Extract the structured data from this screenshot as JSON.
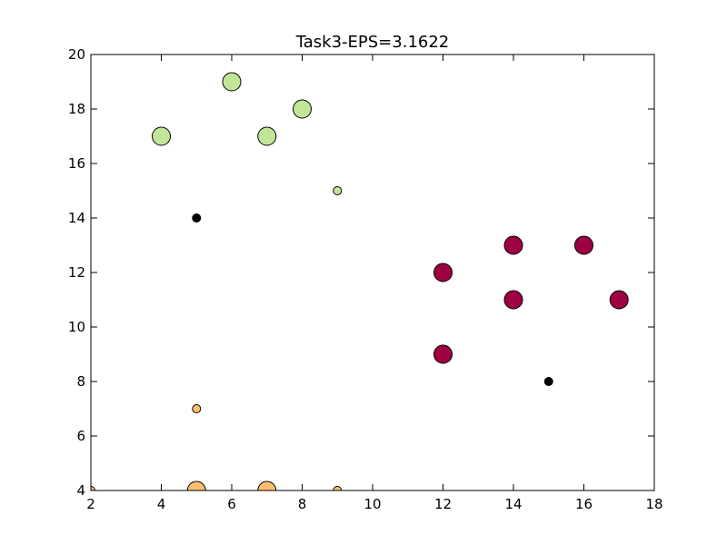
{
  "chart_data": {
    "type": "scatter",
    "title": "Task3-EPS=3.1622",
    "xlabel": "",
    "ylabel": "",
    "xlim": [
      2,
      18
    ],
    "ylim": [
      4,
      20
    ],
    "xticks": [
      2,
      4,
      6,
      8,
      10,
      12,
      14,
      16,
      18
    ],
    "yticks": [
      4,
      6,
      8,
      10,
      12,
      14,
      16,
      18,
      20
    ],
    "grid": false,
    "groups": [
      {
        "color": "#c2e699",
        "points": [
          {
            "x": 4,
            "y": 17,
            "kind": "core"
          },
          {
            "x": 6,
            "y": 19,
            "kind": "core"
          },
          {
            "x": 7,
            "y": 17,
            "kind": "core"
          },
          {
            "x": 8,
            "y": 18,
            "kind": "core"
          },
          {
            "x": 9,
            "y": 15,
            "kind": "border"
          }
        ]
      },
      {
        "color": "#9e0142",
        "points": [
          {
            "x": 12,
            "y": 12,
            "kind": "core"
          },
          {
            "x": 12,
            "y": 9,
            "kind": "core"
          },
          {
            "x": 14,
            "y": 13,
            "kind": "core"
          },
          {
            "x": 14,
            "y": 11,
            "kind": "core"
          },
          {
            "x": 16,
            "y": 13,
            "kind": "core"
          },
          {
            "x": 17,
            "y": 11,
            "kind": "core"
          }
        ]
      },
      {
        "color": "#fdbf6f",
        "points": [
          {
            "x": 5,
            "y": 4,
            "kind": "core"
          },
          {
            "x": 7,
            "y": 4,
            "kind": "core"
          },
          {
            "x": 5,
            "y": 7,
            "kind": "border"
          },
          {
            "x": 9,
            "y": 4,
            "kind": "border"
          },
          {
            "x": 2,
            "y": 4,
            "kind": "border"
          }
        ]
      },
      {
        "color": "#000000",
        "points": [
          {
            "x": 5,
            "y": 14,
            "kind": "noise"
          },
          {
            "x": 15,
            "y": 8,
            "kind": "noise"
          }
        ]
      }
    ]
  }
}
